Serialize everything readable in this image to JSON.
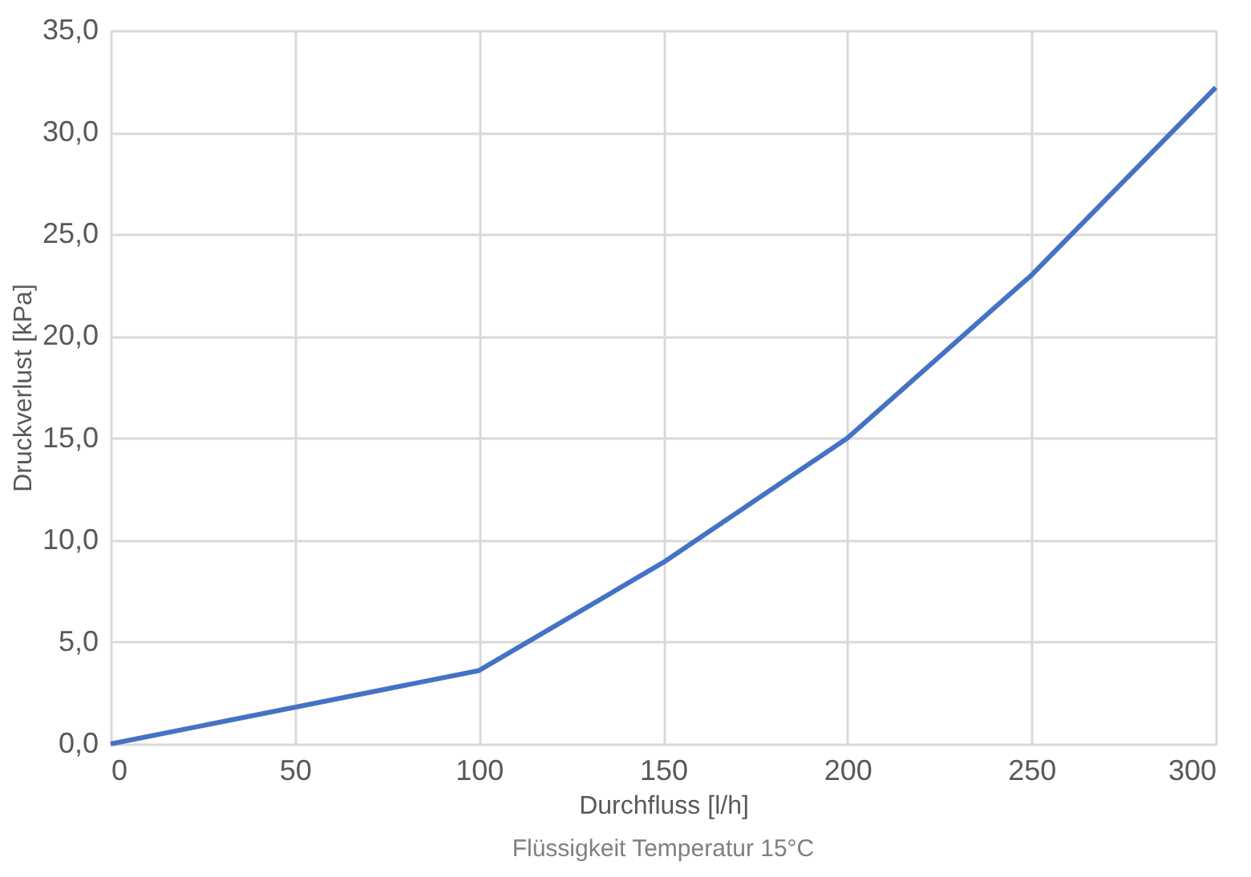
{
  "chart_data": {
    "type": "line",
    "xlabel": "Durchfluss [l/h]",
    "ylabel": "Druckverlust [kPa]",
    "annotations": [
      "Flüssigkeit Temperatur 15°C"
    ],
    "x": [
      0,
      50,
      100,
      150,
      200,
      250,
      300
    ],
    "series": [
      {
        "color": "#4472c4",
        "values": [
          0,
          1.8,
          3.6,
          8.9,
          15.0,
          23.0,
          32.2
        ]
      }
    ],
    "xlim": [
      0,
      300
    ],
    "xticks": [
      0,
      50,
      100,
      150,
      200,
      250,
      300
    ],
    "ylim": [
      0,
      35
    ],
    "yticks": [
      {
        "value": 0,
        "label": "0,0"
      },
      {
        "value": 5,
        "label": "5,0"
      },
      {
        "value": 10,
        "label": "10,0"
      },
      {
        "value": 15,
        "label": "15,0"
      },
      {
        "value": 20,
        "label": "20,0"
      },
      {
        "value": 25,
        "label": "25,0"
      },
      {
        "value": 30,
        "label": "30,0"
      },
      {
        "value": 35,
        "label": "35,0"
      }
    ],
    "grid": true,
    "marker": "none",
    "line_style": "solid"
  }
}
